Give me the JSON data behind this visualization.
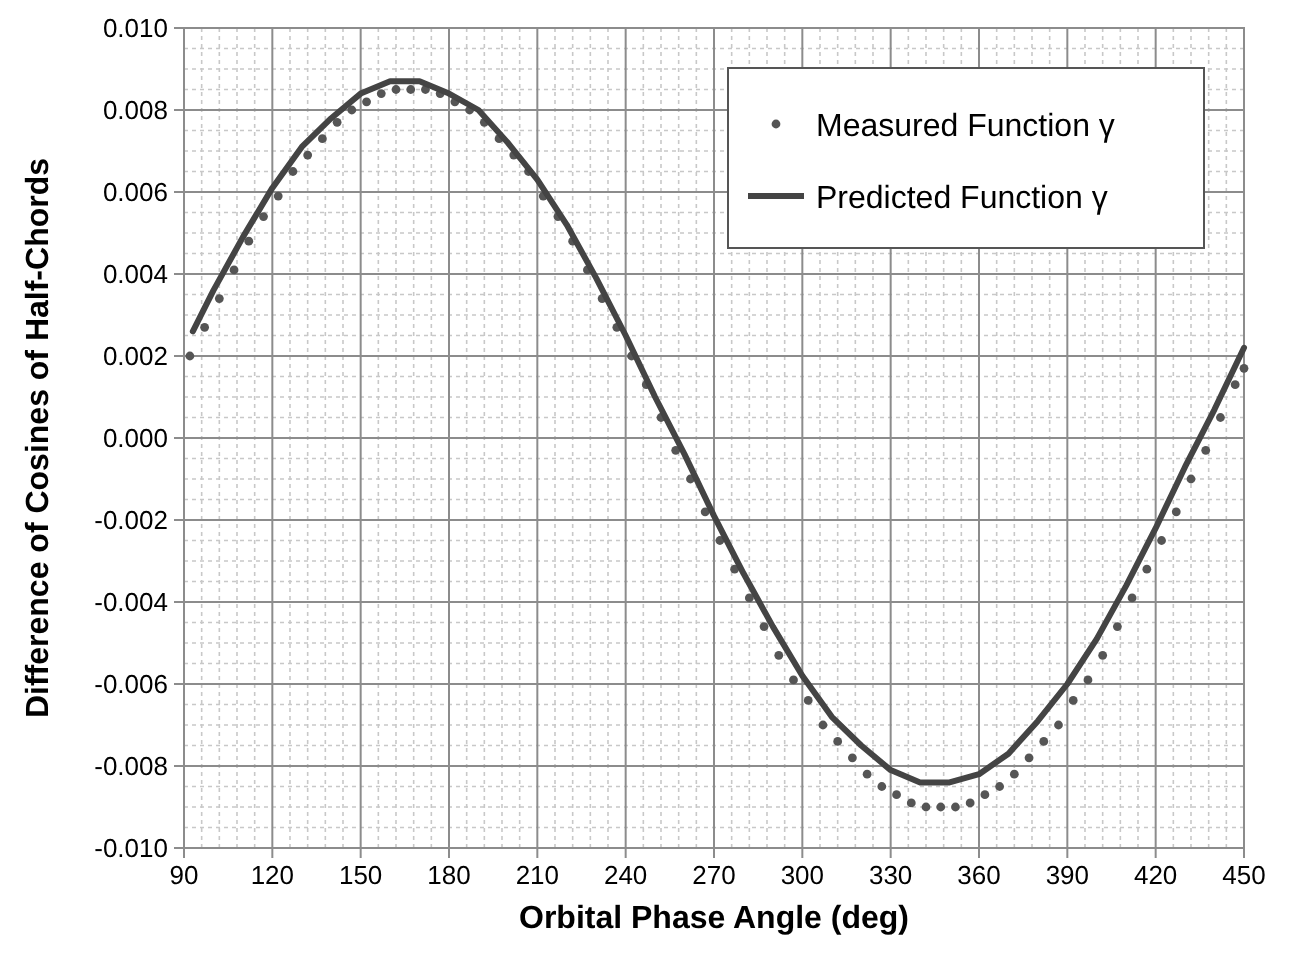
{
  "chart_data": {
    "type": "line",
    "xlabel": "Orbital Phase Angle (deg)",
    "ylabel": "Difference of Cosines of Half-Chords",
    "xlim": [
      90,
      450
    ],
    "xticks": [
      90,
      120,
      150,
      180,
      210,
      240,
      270,
      300,
      330,
      360,
      390,
      420,
      450
    ],
    "ylim": [
      -0.01,
      0.01
    ],
    "yticks": [
      {
        "value": -0.01,
        "label": "-0.010"
      },
      {
        "value": -0.008,
        "label": "-0.008"
      },
      {
        "value": -0.006,
        "label": "-0.006"
      },
      {
        "value": -0.004,
        "label": "-0.004"
      },
      {
        "value": -0.002,
        "label": "-0.002"
      },
      {
        "value": 0,
        "label": "0.000"
      },
      {
        "value": 0.002,
        "label": "0.002"
      },
      {
        "value": 0.004,
        "label": "0.004"
      },
      {
        "value": 0.006,
        "label": "0.006"
      },
      {
        "value": 0.008,
        "label": "0.008"
      },
      {
        "value": 0.01,
        "label": "0.010"
      }
    ],
    "grid": true,
    "legend": "top right",
    "series": [
      {
        "name": "Measured Function γ",
        "type": "scatter",
        "marker": "circle",
        "color": "#555555",
        "x": [
          92,
          97,
          102,
          107,
          112,
          117,
          122,
          127,
          132,
          137,
          142,
          147,
          152,
          157,
          162,
          167,
          172,
          177,
          182,
          187,
          192,
          197,
          202,
          207,
          212,
          217,
          222,
          227,
          232,
          237,
          242,
          247,
          252,
          257,
          262,
          267,
          272,
          277,
          282,
          287,
          292,
          297,
          302,
          307,
          312,
          317,
          322,
          327,
          332,
          337,
          342,
          347,
          352,
          357,
          362,
          367,
          372,
          377,
          382,
          387,
          392,
          397,
          402,
          407,
          412,
          417,
          422,
          427,
          432,
          437,
          442,
          447,
          450
        ],
        "values": [
          0.002,
          0.0027,
          0.0034,
          0.0041,
          0.0048,
          0.0054,
          0.0059,
          0.0065,
          0.0069,
          0.0073,
          0.0077,
          0.008,
          0.0082,
          0.0084,
          0.0085,
          0.0085,
          0.0085,
          0.0084,
          0.0082,
          0.008,
          0.0077,
          0.0073,
          0.0069,
          0.0065,
          0.0059,
          0.0054,
          0.0048,
          0.0041,
          0.0034,
          0.0027,
          0.002,
          0.0013,
          0.0005,
          -0.0003,
          -0.001,
          -0.0018,
          -0.0025,
          -0.0032,
          -0.0039,
          -0.0046,
          -0.0053,
          -0.0059,
          -0.0064,
          -0.007,
          -0.0074,
          -0.0078,
          -0.0082,
          -0.0085,
          -0.0087,
          -0.0089,
          -0.009,
          -0.009,
          -0.009,
          -0.0089,
          -0.0087,
          -0.0085,
          -0.0082,
          -0.0078,
          -0.0074,
          -0.007,
          -0.0064,
          -0.0059,
          -0.0053,
          -0.0046,
          -0.0039,
          -0.0032,
          -0.0025,
          -0.0018,
          -0.001,
          -0.0003,
          0.0005,
          0.0013,
          0.0017
        ]
      },
      {
        "name": "Predicted Function γ",
        "marker": "none",
        "line_style": "solid",
        "color": "#444444",
        "x": [
          93,
          100,
          110,
          120,
          130,
          140,
          150,
          160,
          166,
          170,
          180,
          190,
          200,
          210,
          220,
          230,
          240,
          250,
          260,
          270,
          280,
          290,
          300,
          310,
          320,
          330,
          340,
          350,
          360,
          370,
          380,
          390,
          400,
          410,
          420,
          430,
          440,
          450
        ],
        "values": [
          0.0026,
          0.0036,
          0.0049,
          0.0061,
          0.0071,
          0.0078,
          0.0084,
          0.0087,
          0.0087,
          0.0087,
          0.0084,
          0.008,
          0.0072,
          0.0063,
          0.0052,
          0.0039,
          0.0025,
          0.001,
          -0.0004,
          -0.0019,
          -0.0033,
          -0.0046,
          -0.0058,
          -0.0068,
          -0.0075,
          -0.0081,
          -0.0084,
          -0.0084,
          -0.0082,
          -0.0077,
          -0.0069,
          -0.006,
          -0.0049,
          -0.0036,
          -0.0022,
          -0.0007,
          0.0007,
          0.0022
        ]
      }
    ]
  }
}
